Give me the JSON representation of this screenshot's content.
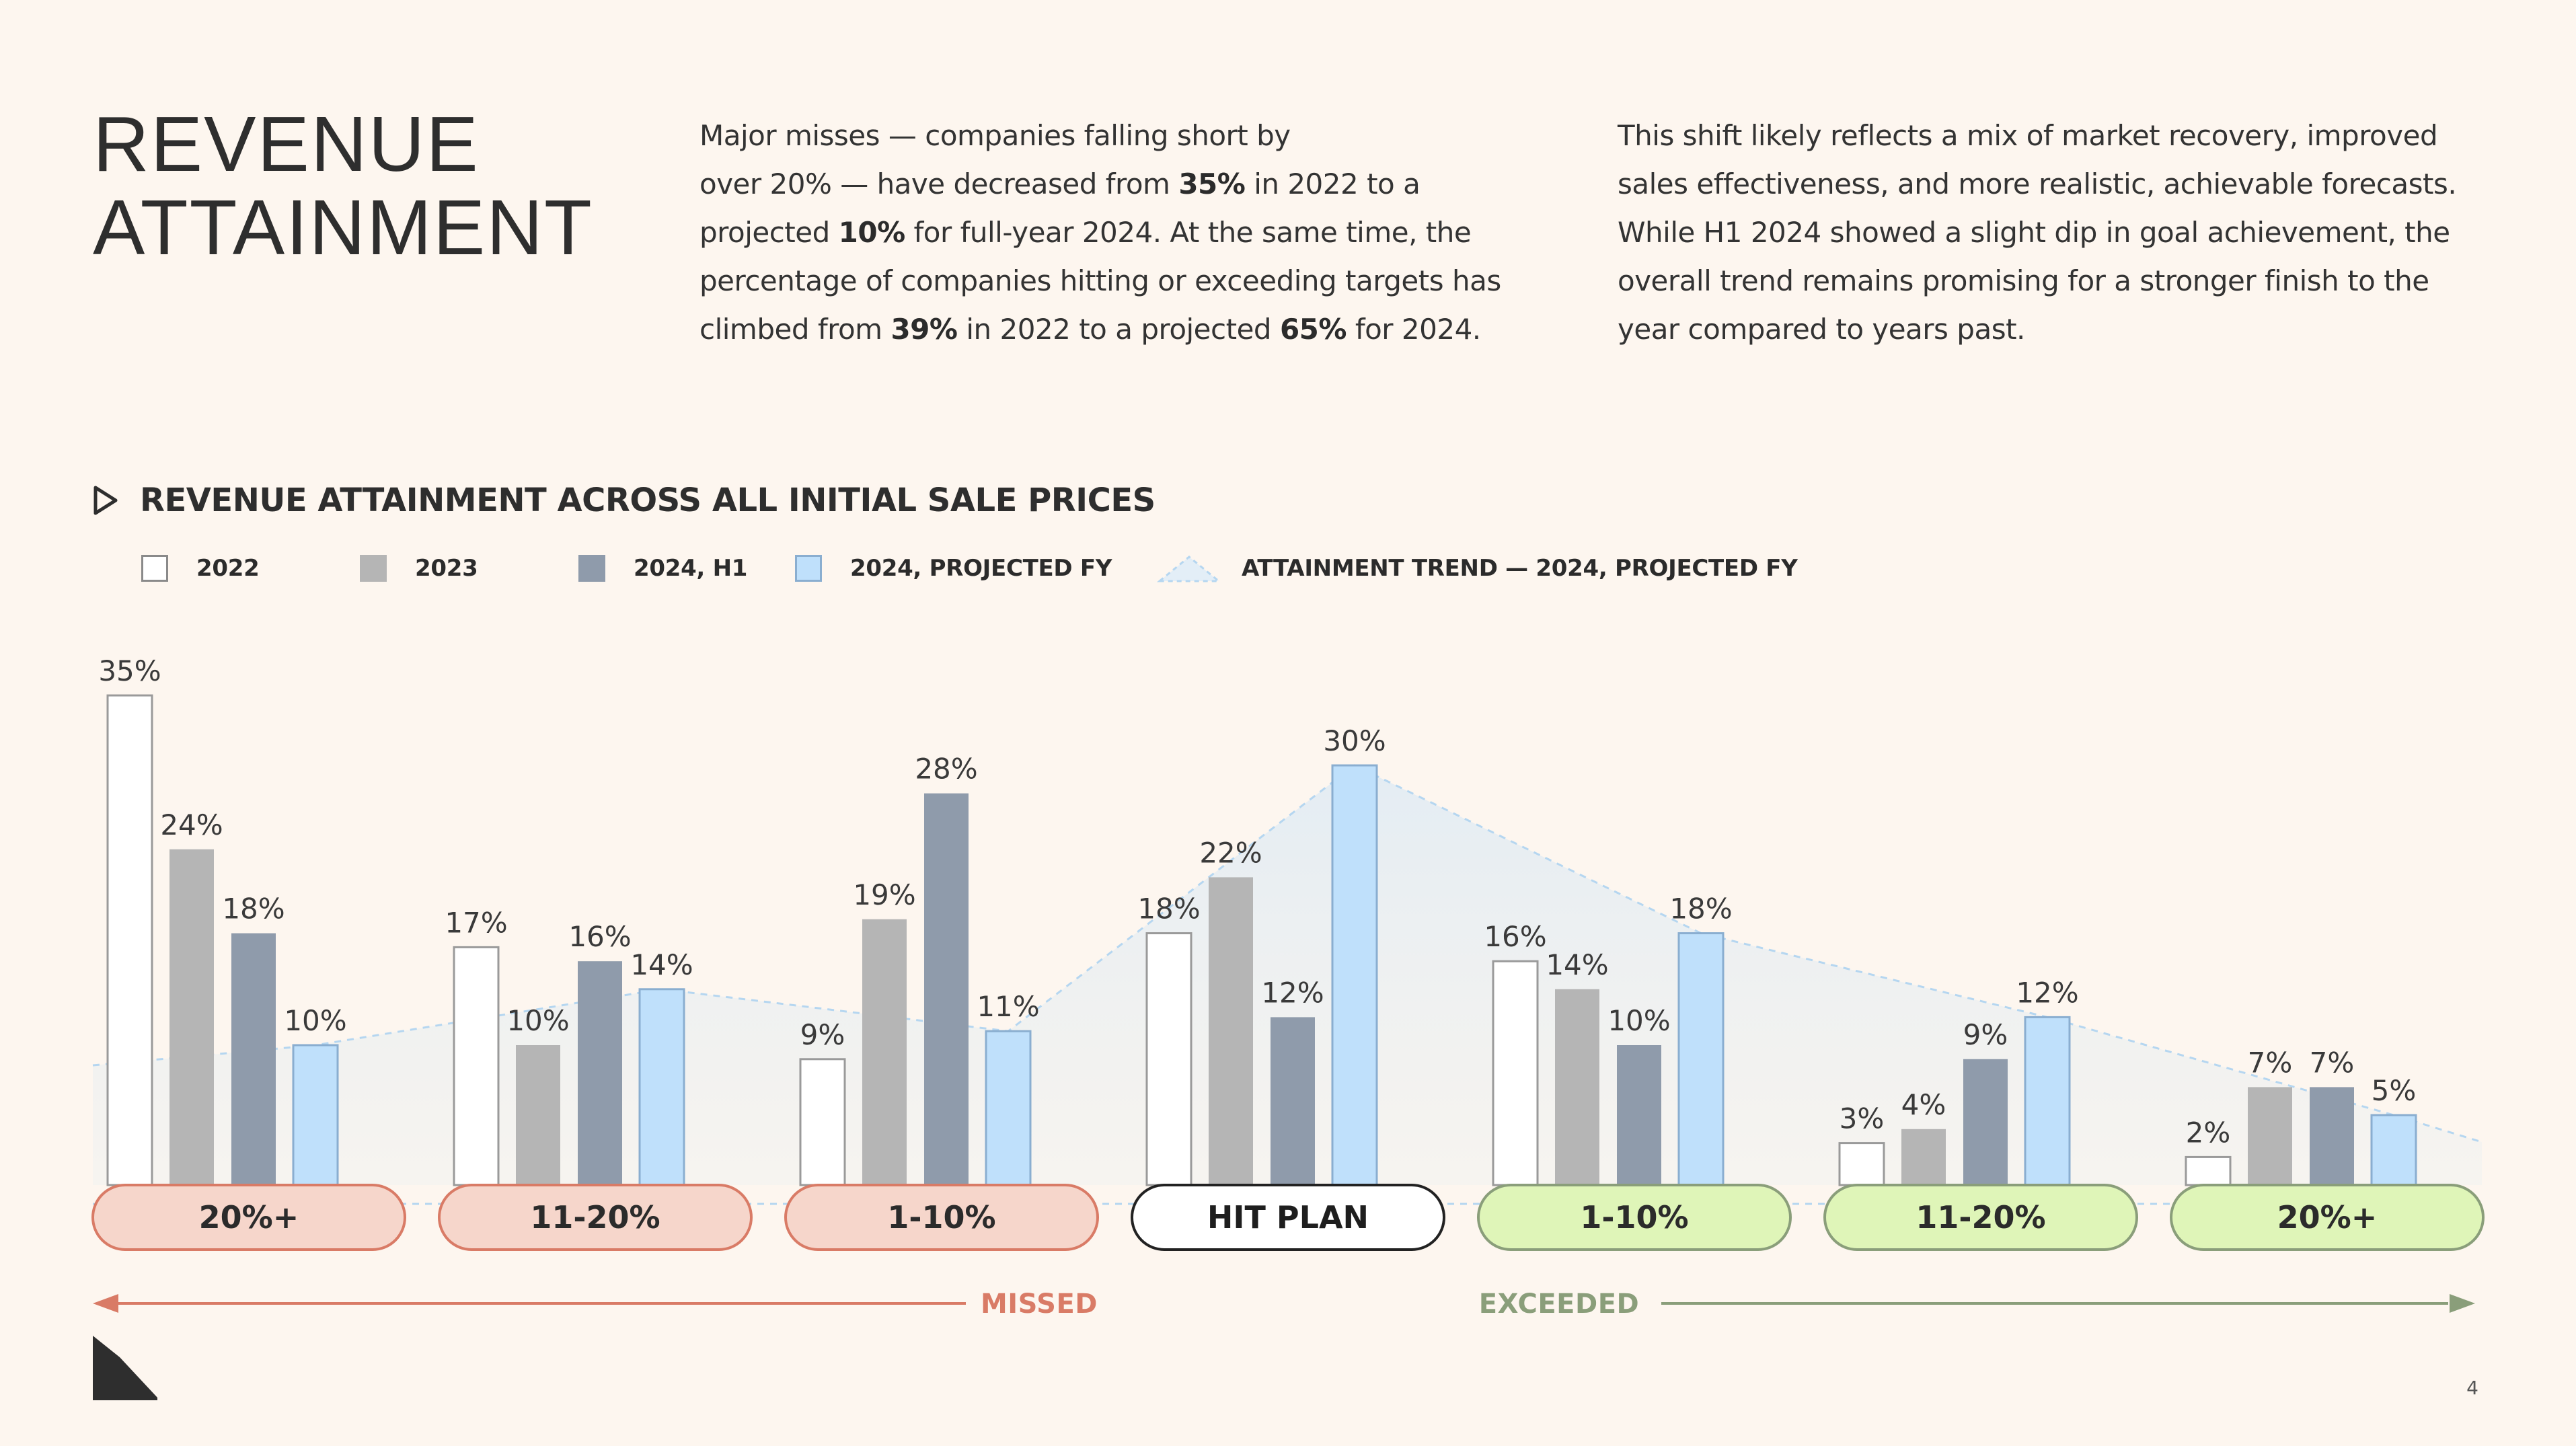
{
  "page": {
    "title_line1": "REVENUE",
    "title_line2": "ATTAINMENT",
    "page_number": "4"
  },
  "intro_left": {
    "l1": "Major misses — companies falling short by",
    "l2a": "over 20% — have decreased from ",
    "l2b": "35%",
    "l2c": " in 2022 to a",
    "l3a": "projected ",
    "l3b": "10%",
    "l3c": " for full-year 2024. At the same time, the",
    "l4": "percentage of companies hitting or exceeding targets has",
    "l5a": "climbed from ",
    "l5b": "39%",
    "l5c": " in 2022 to a projected ",
    "l5d": "65%",
    "l5e": " for 2024."
  },
  "intro_right": {
    "l1": "This shift likely reflects a mix of market recovery, improved",
    "l2": "sales effectiveness, and more realistic, achievable forecasts.",
    "l3": "While H1 2024 showed a slight dip in goal achievement, the",
    "l4": "overall trend remains promising for a stronger finish to the",
    "l5": "year compared to years past."
  },
  "legend": {
    "s2022": "2022",
    "s2023": "2023",
    "s2024h1": "2024, H1",
    "s2024fy": "2024, PROJECTED FY",
    "trend": "ATTAINMENT TREND  — 2024, PROJECTED FY"
  },
  "colors": {
    "background": "#fdf6ef",
    "bar_2022": "#ffffff",
    "bar_2023": "#b5b5b5",
    "bar_2024_h1": "#8f9bab",
    "bar_2024_fy": "#bfe0fb",
    "trend_line": "#b5d6f0",
    "missed": "#d97b66",
    "missed_fill": "#f6d6cb",
    "exceeded": "#8a9e7a",
    "exceeded_fill": "#dff5b8",
    "hit_plan_fill": "#ffffff",
    "hit_plan_stroke": "#222222"
  },
  "chart_data": {
    "type": "bar",
    "title": "REVENUE ATTAINMENT ACROSS ALL INITIAL SALE PRICES",
    "categories": [
      "20%+",
      "11-20%",
      "1-10%",
      "HIT PLAN",
      "1-10%",
      "11-20%",
      "20%+"
    ],
    "category_status": [
      "missed",
      "missed",
      "missed",
      "hit",
      "exceeded",
      "exceeded",
      "exceeded"
    ],
    "series": [
      {
        "name": "2022",
        "values": [
          35,
          17,
          9,
          18,
          16,
          3,
          2
        ]
      },
      {
        "name": "2023",
        "values": [
          24,
          10,
          19,
          22,
          14,
          4,
          7
        ]
      },
      {
        "name": "2024, H1",
        "values": [
          18,
          16,
          28,
          12,
          10,
          9,
          7
        ]
      },
      {
        "name": "2024, PROJECTED FY",
        "values": [
          10,
          14,
          11,
          30,
          18,
          12,
          5
        ]
      }
    ],
    "trend": {
      "name": "ATTAINMENT TREND  — 2024, PROJECTED FY",
      "values": [
        10,
        14,
        11,
        30,
        18,
        12,
        5
      ]
    },
    "value_suffix": "%",
    "group_labels": {
      "missed": "MISSED",
      "exceeded": "EXCEEDED"
    },
    "xlabel": "",
    "ylabel": "",
    "ylim": [
      0,
      35
    ],
    "grid": false,
    "legend_position": "top-left"
  }
}
